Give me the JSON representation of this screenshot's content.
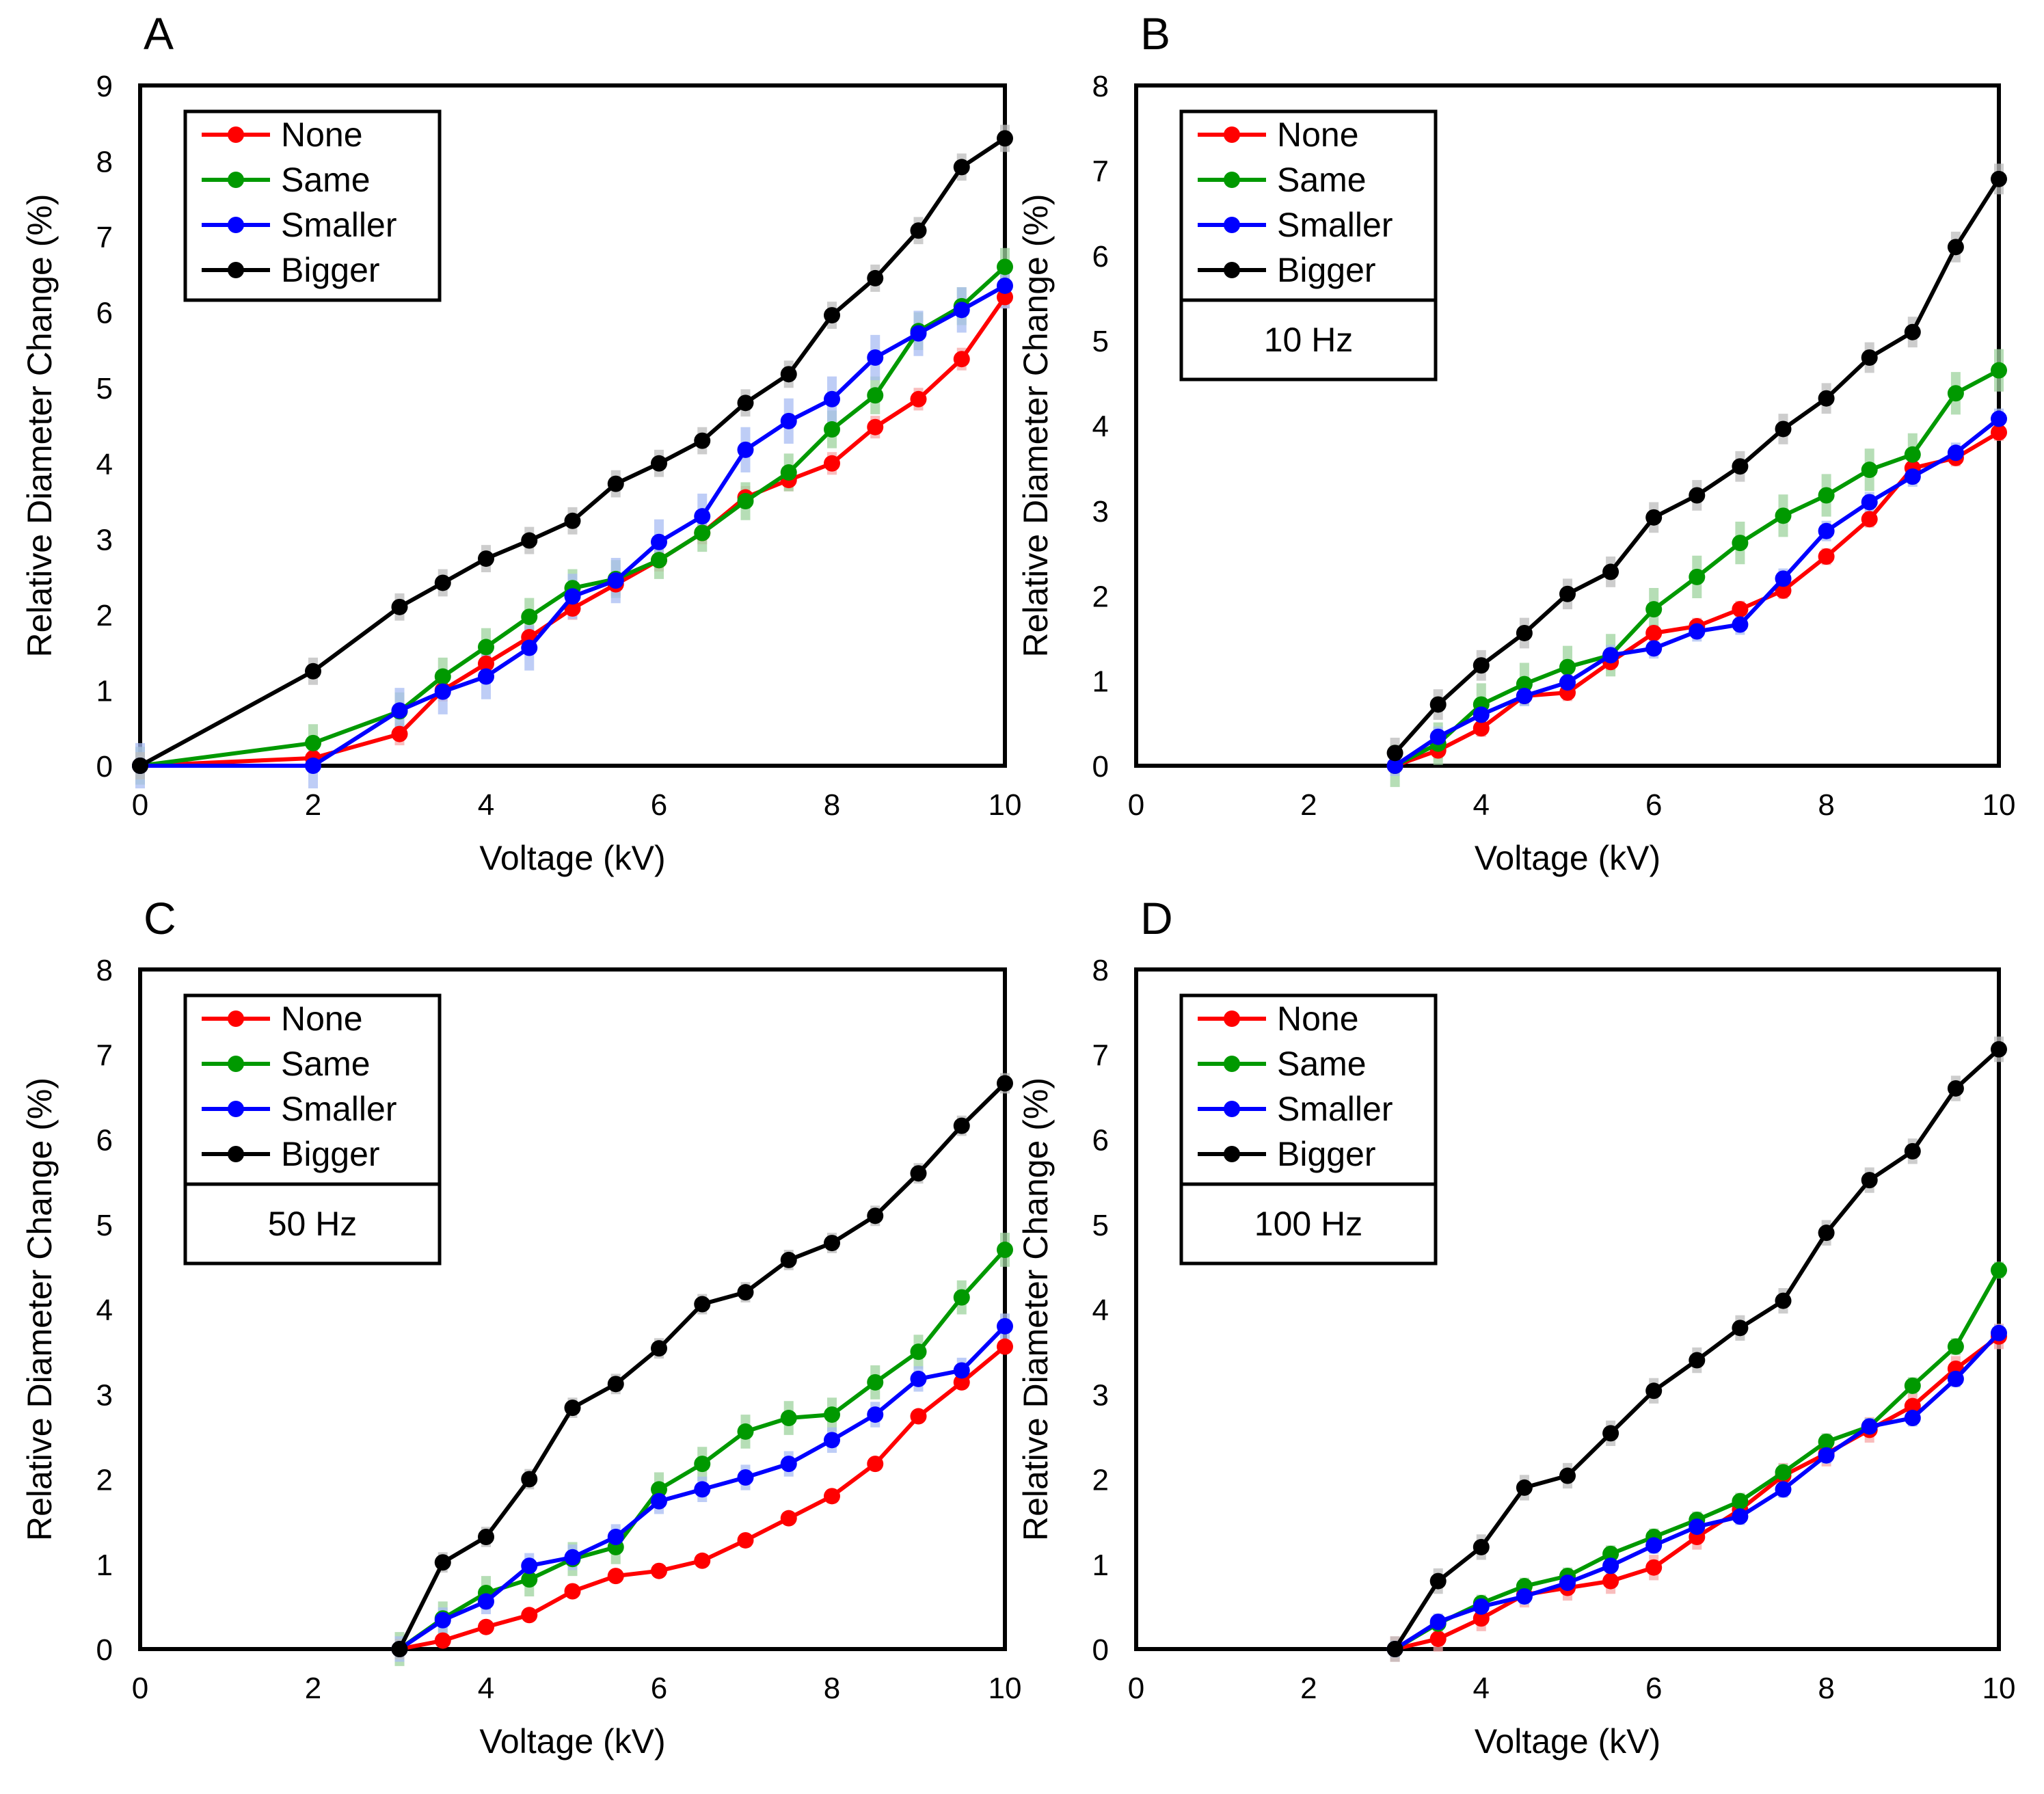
{
  "chart_data": [
    {
      "type": "line",
      "panel": "A",
      "xlabel": "Voltage (kV)",
      "ylabel": "Relative Diameter Change (%)",
      "xlim": [
        0,
        10
      ],
      "ylim": [
        0,
        9
      ],
      "xticks": [
        0,
        2,
        4,
        6,
        8,
        10
      ],
      "yticks": [
        0,
        1,
        2,
        3,
        4,
        5,
        6,
        7,
        8,
        9
      ],
      "legend_position": "top-left",
      "annotation": "",
      "x": [
        0,
        2,
        3,
        3.5,
        4,
        4.5,
        5,
        5.5,
        6,
        6.5,
        7,
        7.5,
        8,
        8.5,
        9,
        9.5,
        10
      ],
      "series": [
        {
          "name": "None",
          "color": "#ff0000",
          "errcolor": "#f7a8a8",
          "err": 0.15,
          "values": [
            0,
            0.1,
            0.42,
            1.0,
            1.35,
            1.7,
            2.08,
            2.4,
            2.72,
            3.08,
            3.55,
            3.78,
            4.0,
            4.48,
            4.85,
            5.38,
            6.2
          ]
        },
        {
          "name": "Same",
          "color": "#009900",
          "errcolor": "#9ed39e",
          "err": 0.25,
          "values": [
            0,
            0.3,
            0.72,
            1.18,
            1.57,
            1.97,
            2.35,
            2.47,
            2.72,
            3.08,
            3.5,
            3.88,
            4.45,
            4.9,
            5.75,
            6.08,
            6.6
          ]
        },
        {
          "name": "Smaller",
          "color": "#0000ff",
          "errcolor": "#a9bdf3",
          "err": 0.3,
          "values": [
            0,
            0,
            0.73,
            0.98,
            1.18,
            1.56,
            2.24,
            2.45,
            2.96,
            3.3,
            4.18,
            4.56,
            4.85,
            5.4,
            5.72,
            6.03,
            6.35
          ]
        },
        {
          "name": "Bigger",
          "color": "#000000",
          "errcolor": "#bdbdbd",
          "err": 0.18,
          "values": [
            0,
            1.25,
            2.1,
            2.42,
            2.74,
            2.98,
            3.24,
            3.73,
            4.0,
            4.3,
            4.8,
            5.18,
            5.96,
            6.45,
            7.08,
            7.92,
            8.3
          ]
        }
      ]
    },
    {
      "type": "line",
      "panel": "B",
      "xlabel": "Voltage (kV)",
      "ylabel": "Relative Diameter Change (%)",
      "xlim": [
        0,
        10
      ],
      "ylim": [
        0,
        8
      ],
      "xticks": [
        0,
        2,
        4,
        6,
        8,
        10
      ],
      "yticks": [
        0,
        1,
        2,
        3,
        4,
        5,
        6,
        7,
        8
      ],
      "legend_position": "top-left",
      "annotation": "10 Hz",
      "x": [
        3,
        3.5,
        4,
        4.5,
        5,
        5.5,
        6,
        6.5,
        7,
        7.5,
        8,
        8.5,
        9,
        9.5,
        10
      ],
      "series": [
        {
          "name": "None",
          "color": "#ff0000",
          "errcolor": "#f7a8a8",
          "err": 0.1,
          "values": [
            0,
            0.18,
            0.44,
            0.82,
            0.86,
            1.22,
            1.56,
            1.64,
            1.84,
            2.06,
            2.46,
            2.9,
            3.5,
            3.62,
            3.92
          ]
        },
        {
          "name": "Same",
          "color": "#009900",
          "errcolor": "#9ed39e",
          "err": 0.25,
          "values": [
            0,
            0.26,
            0.72,
            0.96,
            1.16,
            1.3,
            1.84,
            2.22,
            2.62,
            2.94,
            3.18,
            3.48,
            3.66,
            4.38,
            4.65
          ]
        },
        {
          "name": "Smaller",
          "color": "#0000ff",
          "errcolor": "#a9bdf3",
          "err": 0.12,
          "values": [
            0,
            0.34,
            0.6,
            0.82,
            0.98,
            1.3,
            1.38,
            1.58,
            1.66,
            2.2,
            2.76,
            3.1,
            3.4,
            3.68,
            4.08
          ]
        },
        {
          "name": "Bigger",
          "color": "#000000",
          "errcolor": "#bdbdbd",
          "err": 0.18,
          "values": [
            0.15,
            0.72,
            1.18,
            1.56,
            2.02,
            2.28,
            2.92,
            3.18,
            3.52,
            3.96,
            4.32,
            4.8,
            5.1,
            6.1,
            6.9
          ]
        }
      ]
    },
    {
      "type": "line",
      "panel": "C",
      "xlabel": "Voltage (kV)",
      "ylabel": "Relative Diameter Change (%)",
      "xlim": [
        0,
        10
      ],
      "ylim": [
        0,
        8
      ],
      "xticks": [
        0,
        2,
        4,
        6,
        8,
        10
      ],
      "yticks": [
        0,
        1,
        2,
        3,
        4,
        5,
        6,
        7,
        8
      ],
      "legend_position": "top-left",
      "annotation": "50 Hz",
      "x": [
        3,
        3.5,
        4,
        4.5,
        5,
        5.5,
        6,
        6.5,
        7,
        7.5,
        8,
        8.5,
        9,
        9.5,
        10
      ],
      "series": [
        {
          "name": "None",
          "color": "#ff0000",
          "errcolor": "#f7a8a8",
          "err": 0.08,
          "values": [
            0,
            0.1,
            0.26,
            0.4,
            0.68,
            0.86,
            0.92,
            1.04,
            1.28,
            1.54,
            1.8,
            2.18,
            2.74,
            3.14,
            3.56
          ]
        },
        {
          "name": "Same",
          "color": "#009900",
          "errcolor": "#9ed39e",
          "err": 0.2,
          "values": [
            0,
            0.36,
            0.66,
            0.82,
            1.06,
            1.2,
            1.88,
            2.18,
            2.56,
            2.72,
            2.76,
            3.14,
            3.5,
            4.14,
            4.7
          ]
        },
        {
          "name": "Smaller",
          "color": "#0000ff",
          "errcolor": "#a9bdf3",
          "err": 0.15,
          "values": [
            0,
            0.34,
            0.56,
            0.98,
            1.08,
            1.32,
            1.74,
            1.88,
            2.02,
            2.18,
            2.46,
            2.76,
            3.18,
            3.28,
            3.8
          ]
        },
        {
          "name": "Bigger",
          "color": "#000000",
          "errcolor": "#bdbdbd",
          "err": 0.12,
          "values": [
            0,
            1.02,
            1.32,
            2.0,
            2.84,
            3.12,
            3.54,
            4.06,
            4.2,
            4.58,
            4.78,
            5.1,
            5.6,
            6.16,
            6.66
          ]
        }
      ]
    },
    {
      "type": "line",
      "panel": "D",
      "xlabel": "Voltage (kV)",
      "ylabel": "Relative Diameter Change (%)",
      "xlim": [
        0,
        10
      ],
      "ylim": [
        0,
        8
      ],
      "xticks": [
        0,
        2,
        4,
        6,
        8,
        10
      ],
      "yticks": [
        0,
        1,
        2,
        3,
        4,
        5,
        6,
        7,
        8
      ],
      "legend_position": "top-left",
      "annotation": "100 Hz",
      "x": [
        3,
        3.5,
        4,
        4.5,
        5,
        5.5,
        6,
        6.5,
        7,
        7.5,
        8,
        8.5,
        9,
        9.5,
        10
      ],
      "series": [
        {
          "name": "None",
          "color": "#ff0000",
          "errcolor": "#f7a8a8",
          "err": 0.15,
          "values": [
            0,
            0.12,
            0.36,
            0.64,
            0.72,
            0.8,
            0.96,
            1.32,
            1.64,
            2.04,
            2.3,
            2.58,
            2.86,
            3.3,
            3.68
          ]
        },
        {
          "name": "Same",
          "color": "#009900",
          "errcolor": "#9ed39e",
          "err": 0.1,
          "values": [
            0,
            0.3,
            0.54,
            0.74,
            0.86,
            1.12,
            1.32,
            1.52,
            1.74,
            2.08,
            2.44,
            2.62,
            3.1,
            3.56,
            4.46
          ]
        },
        {
          "name": "Smaller",
          "color": "#0000ff",
          "errcolor": "#a9bdf3",
          "err": 0.1,
          "values": [
            0,
            0.32,
            0.5,
            0.62,
            0.78,
            0.98,
            1.22,
            1.44,
            1.56,
            1.88,
            2.28,
            2.62,
            2.72,
            3.18,
            3.72
          ]
        },
        {
          "name": "Bigger",
          "color": "#000000",
          "errcolor": "#bdbdbd",
          "err": 0.15,
          "values": [
            0,
            0.8,
            1.2,
            1.9,
            2.04,
            2.54,
            3.04,
            3.4,
            3.78,
            4.1,
            4.9,
            5.52,
            5.86,
            6.6,
            7.06
          ]
        }
      ]
    }
  ]
}
